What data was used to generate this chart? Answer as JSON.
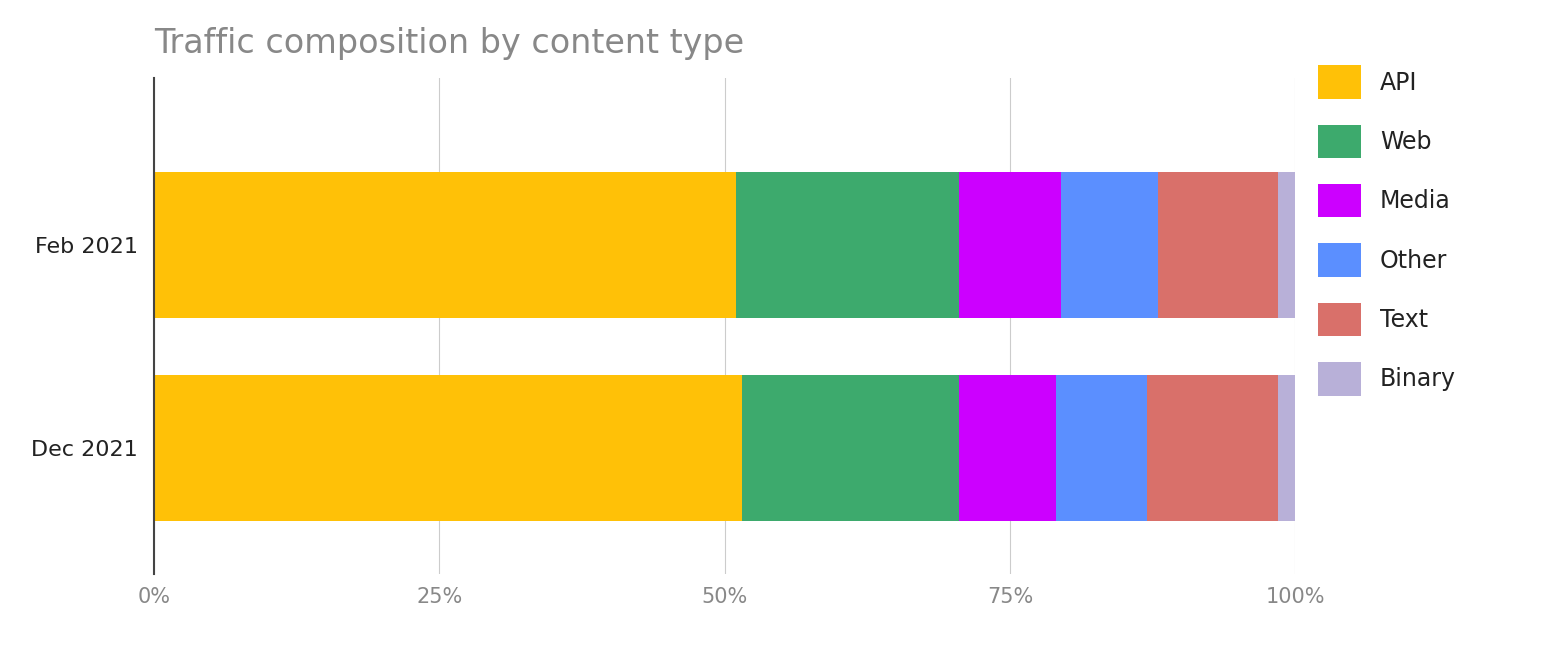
{
  "title": "Traffic composition by content type",
  "categories": [
    "Feb 2021",
    "Dec 2021"
  ],
  "segments": [
    "API",
    "Web",
    "Media",
    "Other",
    "Text",
    "Binary"
  ],
  "colors": [
    "#FFC107",
    "#3DAA6D",
    "#CC00FF",
    "#5B8FFF",
    "#D9706A",
    "#B8B0D8"
  ],
  "values": {
    "Feb 2021": [
      51.0,
      19.5,
      9.0,
      8.5,
      10.5,
      1.5
    ],
    "Dec 2021": [
      51.5,
      19.0,
      8.5,
      8.0,
      11.5,
      1.5
    ]
  },
  "xlim": [
    0,
    100
  ],
  "xticks": [
    0,
    25,
    50,
    75,
    100
  ],
  "xticklabels": [
    "0%",
    "25%",
    "50%",
    "75%",
    "100%"
  ],
  "background_color": "#FFFFFF",
  "title_fontsize": 24,
  "tick_fontsize": 15,
  "label_fontsize": 16,
  "legend_fontsize": 17,
  "title_color": "#888888",
  "tick_color": "#888888",
  "label_color": "#222222",
  "bar_height": 0.72,
  "grid_color": "#CCCCCC"
}
